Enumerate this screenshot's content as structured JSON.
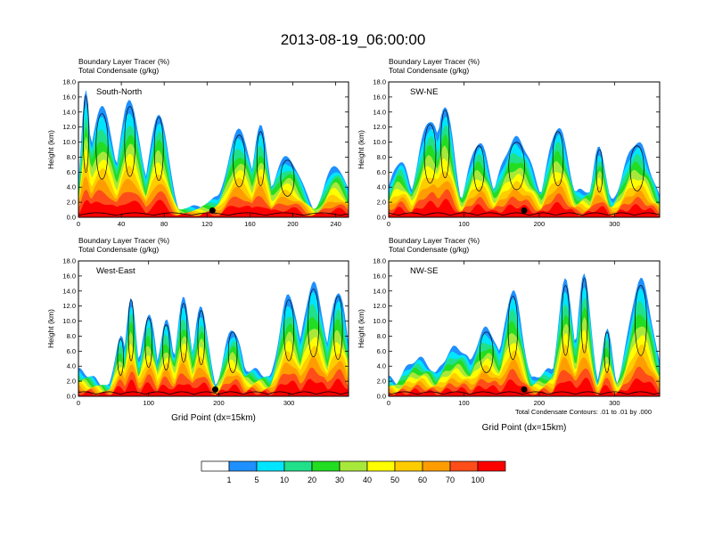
{
  "title": "2013-08-19_06:00:00",
  "palette": {
    "colors": [
      "#ffffff",
      "#1e90ff",
      "#00e5ff",
      "#20e08a",
      "#22dd22",
      "#a8e83a",
      "#ffff00",
      "#ffcc00",
      "#ff9d00",
      "#ff4d1a",
      "#ff0000"
    ],
    "labels": [
      "1",
      "5",
      "10",
      "20",
      "30",
      "40",
      "50",
      "60",
      "70",
      "100"
    ]
  },
  "footnote": "Total Condensate Contours: .01 to .01 by .000",
  "chart_data": [
    {
      "type": "heatmap",
      "title_line1": "Boundary Layer Tracer   (%)",
      "title_line2": "Total Condensate   (g/kg)",
      "section": "South-North",
      "ylabel": "Height (km)",
      "xlabel": "",
      "xlim": [
        0,
        252
      ],
      "ylim": [
        0,
        18
      ],
      "xticks": [
        "0",
        "40",
        "80",
        "120",
        "160",
        "200",
        "240"
      ],
      "yticks": [
        "0.0",
        "2.0",
        "4.0",
        "6.0",
        "8.0",
        "10.0",
        "12.0",
        "14.0",
        "16.0",
        "18.0"
      ],
      "marker_x": 125,
      "plumes": [
        {
          "x": 7,
          "top": 17.0,
          "w": 6
        },
        {
          "x": 22,
          "top": 14.5,
          "w": 16
        },
        {
          "x": 48,
          "top": 15.5,
          "w": 14
        },
        {
          "x": 75,
          "top": 14.0,
          "w": 12
        },
        {
          "x": 150,
          "top": 11.5,
          "w": 16
        },
        {
          "x": 170,
          "top": 12.0,
          "w": 10
        },
        {
          "x": 195,
          "top": 8.0,
          "w": 18
        },
        {
          "x": 240,
          "top": 7.0,
          "w": 14
        }
      ]
    },
    {
      "type": "heatmap",
      "title_line1": "Boundary Layer Tracer   (%)",
      "title_line2": "Total Condensate   (g/kg)",
      "section": "SW-NE",
      "ylabel": "Height (km)",
      "xlabel": "",
      "xlim": [
        0,
        360
      ],
      "ylim": [
        0,
        18
      ],
      "xticks": [
        "0",
        "100",
        "200",
        "300"
      ],
      "yticks": [
        "0.0",
        "2.0",
        "4.0",
        "6.0",
        "8.0",
        "10.0",
        "12.0",
        "14.0",
        "16.0",
        "18.0"
      ],
      "marker_x": 180,
      "plumes": [
        {
          "x": 15,
          "top": 7.5,
          "w": 18
        },
        {
          "x": 55,
          "top": 13.0,
          "w": 22
        },
        {
          "x": 75,
          "top": 15.0,
          "w": 16
        },
        {
          "x": 120,
          "top": 10.0,
          "w": 20
        },
        {
          "x": 170,
          "top": 10.5,
          "w": 30
        },
        {
          "x": 225,
          "top": 12.0,
          "w": 20
        },
        {
          "x": 280,
          "top": 9.5,
          "w": 12
        },
        {
          "x": 330,
          "top": 10.0,
          "w": 26
        }
      ]
    },
    {
      "type": "heatmap",
      "title_line1": "Boundary Layer Tracer   (%)",
      "title_line2": "Total Condensate   (g/kg)",
      "section": "West-East",
      "ylabel": "Height (km)",
      "xlabel": "Grid Point (dx=15km)",
      "xlim": [
        0,
        385
      ],
      "ylim": [
        0,
        18
      ],
      "xticks": [
        "0",
        "100",
        "200",
        "300"
      ],
      "yticks": [
        "0.0",
        "2.0",
        "4.0",
        "6.0",
        "8.0",
        "10.0",
        "12.0",
        "14.0",
        "16.0",
        "18.0"
      ],
      "marker_x": 195,
      "plumes": [
        {
          "x": 60,
          "top": 8.0,
          "w": 12
        },
        {
          "x": 75,
          "top": 13.5,
          "w": 10
        },
        {
          "x": 100,
          "top": 11.0,
          "w": 14
        },
        {
          "x": 125,
          "top": 10.0,
          "w": 14
        },
        {
          "x": 150,
          "top": 13.0,
          "w": 14
        },
        {
          "x": 175,
          "top": 12.0,
          "w": 14
        },
        {
          "x": 220,
          "top": 9.0,
          "w": 18
        },
        {
          "x": 300,
          "top": 13.5,
          "w": 20
        },
        {
          "x": 335,
          "top": 15.0,
          "w": 22
        },
        {
          "x": 370,
          "top": 14.0,
          "w": 18
        }
      ]
    },
    {
      "type": "heatmap",
      "title_line1": "Boundary Layer Tracer   (%)",
      "title_line2": "Total Condensate   (g/kg)",
      "section": "NW-SE",
      "ylabel": "Height (km)",
      "xlabel": "Grid Point (dx=15km)",
      "xlim": [
        0,
        360
      ],
      "ylim": [
        0,
        18
      ],
      "xticks": [
        "0",
        "100",
        "200",
        "300"
      ],
      "yticks": [
        "0.0",
        "2.0",
        "4.0",
        "6.0",
        "8.0",
        "10.0",
        "12.0",
        "14.0",
        "16.0",
        "18.0"
      ],
      "marker_x": 180,
      "plumes": [
        {
          "x": 40,
          "top": 5.0,
          "w": 30
        },
        {
          "x": 90,
          "top": 6.5,
          "w": 30
        },
        {
          "x": 130,
          "top": 9.0,
          "w": 25
        },
        {
          "x": 165,
          "top": 14.0,
          "w": 18
        },
        {
          "x": 235,
          "top": 15.5,
          "w": 14
        },
        {
          "x": 260,
          "top": 16.5,
          "w": 12
        },
        {
          "x": 290,
          "top": 9.0,
          "w": 10
        },
        {
          "x": 335,
          "top": 15.5,
          "w": 22
        }
      ]
    }
  ]
}
